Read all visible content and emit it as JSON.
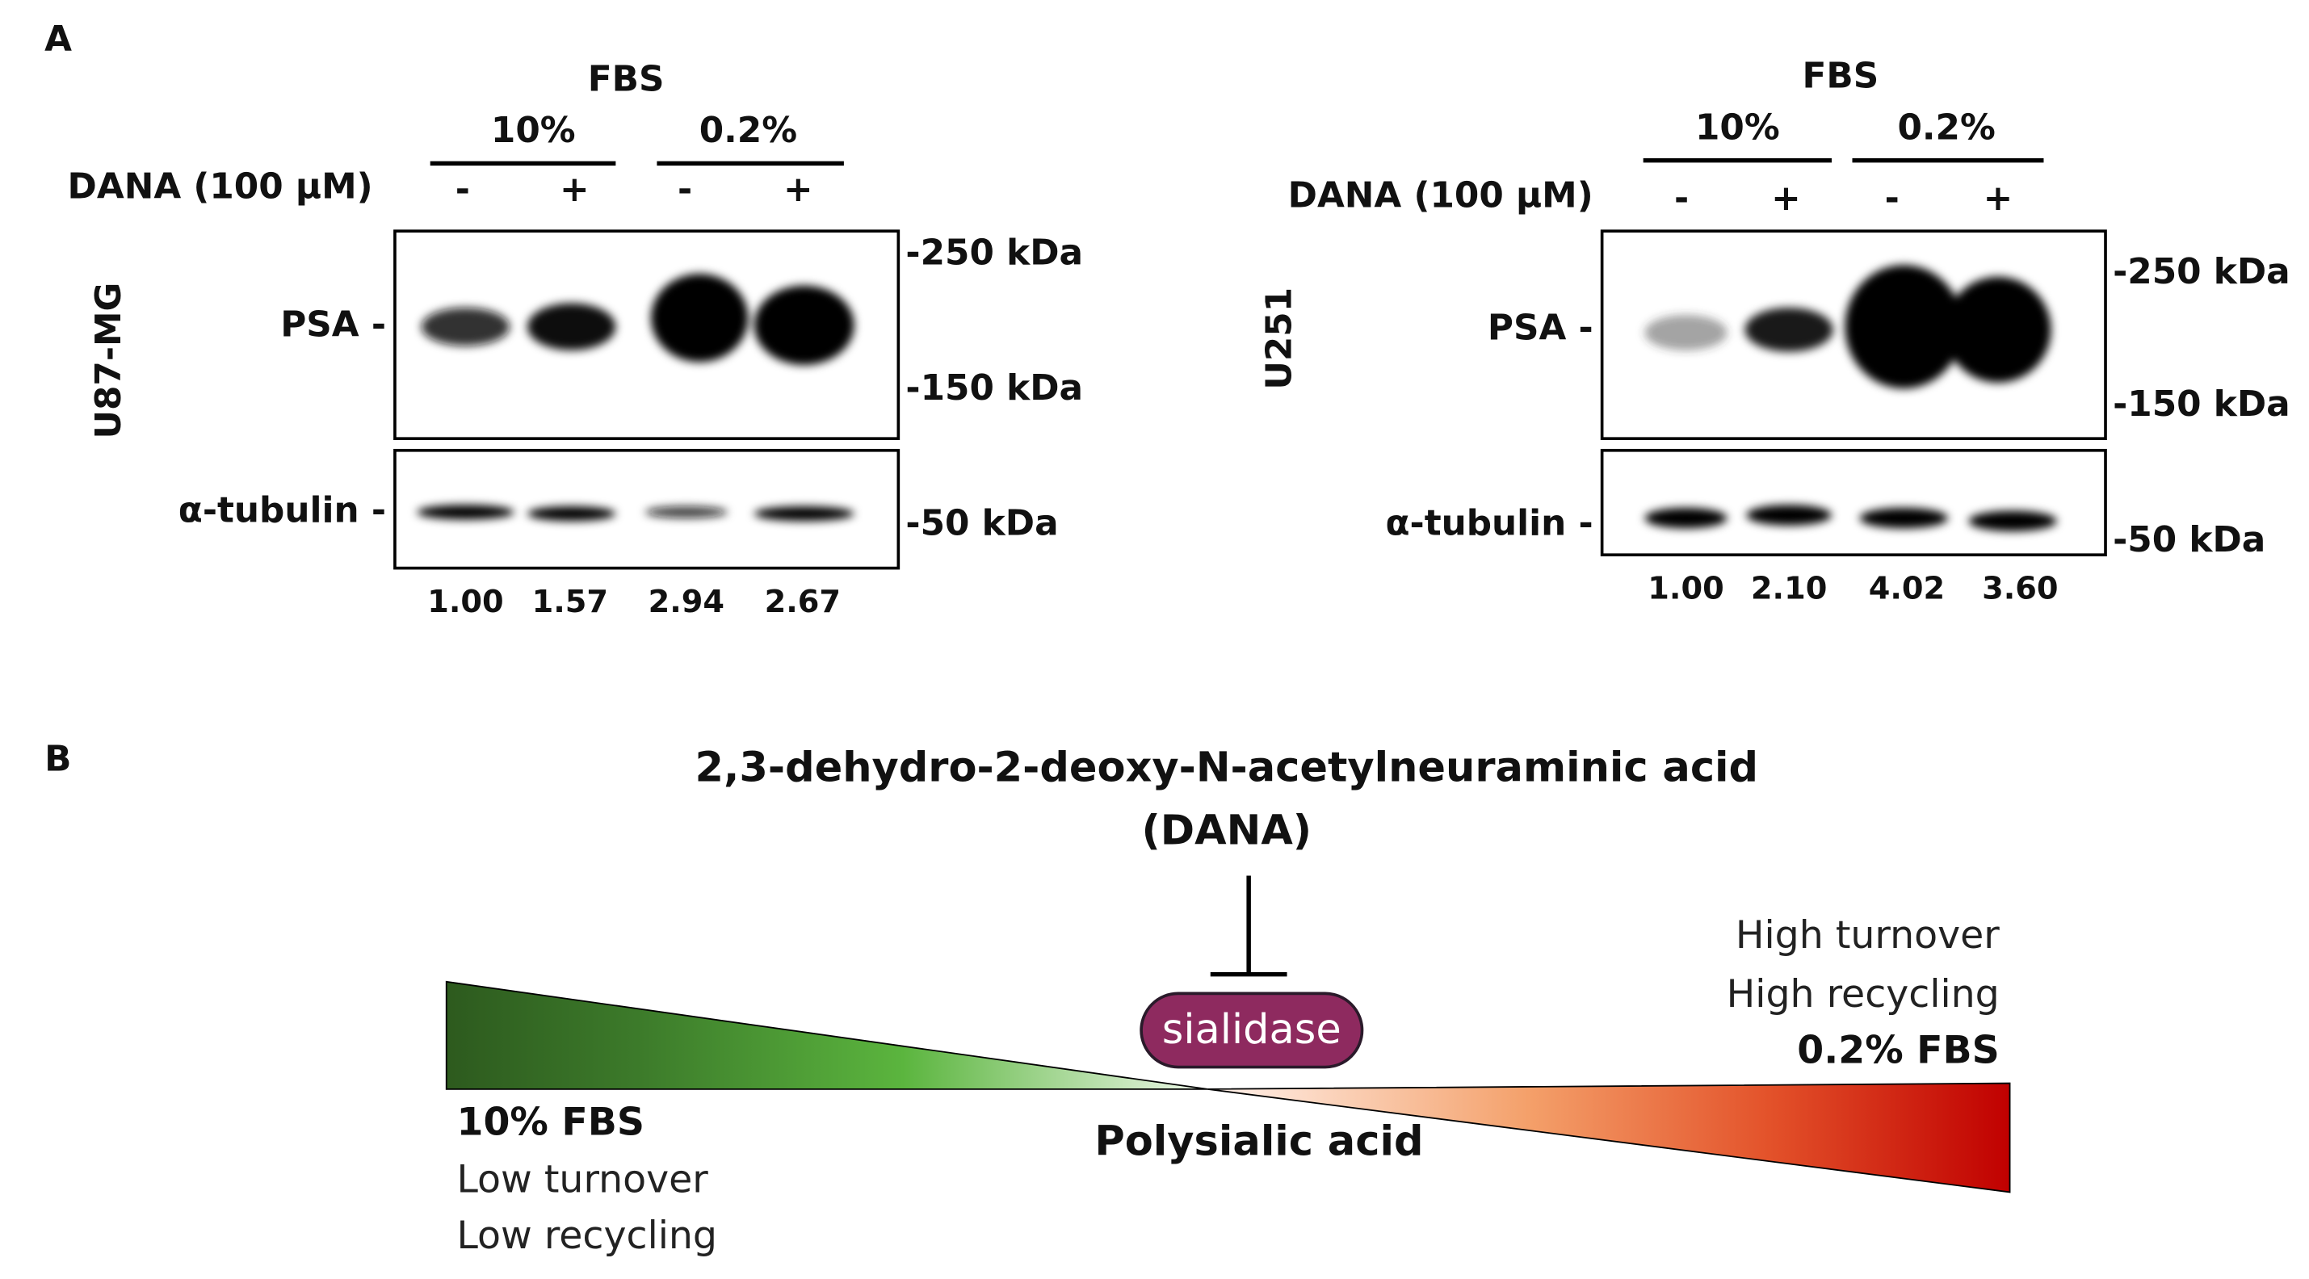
{
  "panel_a": {
    "label": "A",
    "blots": [
      {
        "cell_line": "U87-MG",
        "fbs_label": "FBS",
        "conditions": [
          "10%",
          "0.2%"
        ],
        "treatment_label": "DANA (100 μM)",
        "treatment_signs": [
          "-",
          "+",
          "-",
          "+"
        ],
        "bands": [
          "PSA -",
          "α-tubulin -"
        ],
        "markers": [
          "-250 kDa",
          "-150 kDa",
          "-50 kDa"
        ],
        "quantification": [
          "1.00",
          "1.57",
          "2.94",
          "2.67"
        ]
      },
      {
        "cell_line": "U251",
        "fbs_label": "FBS",
        "conditions": [
          "10%",
          "0.2%"
        ],
        "treatment_label": "DANA (100 μM)",
        "treatment_signs": [
          "-",
          "+",
          "-",
          "+"
        ],
        "bands": [
          "PSA -",
          "α-tubulin -"
        ],
        "markers": [
          "-250 kDa",
          "-150 kDa",
          "-50 kDa"
        ],
        "quantification": [
          "1.00",
          "2.10",
          "4.02",
          "3.60"
        ]
      }
    ]
  },
  "panel_b": {
    "label": "B",
    "inhibitor": [
      "2,3-dehydro-2-deoxy-N-acetylneuraminic acid",
      "(DANA)"
    ],
    "enzyme": "sialidase",
    "substrate": "Polysialic acid",
    "left": {
      "condition": "10% FBS",
      "notes": [
        "Low turnover",
        "Low recycling"
      ]
    },
    "right": {
      "condition": "0.2% FBS",
      "notes": [
        "High turnover",
        "High recycling"
      ]
    }
  }
}
